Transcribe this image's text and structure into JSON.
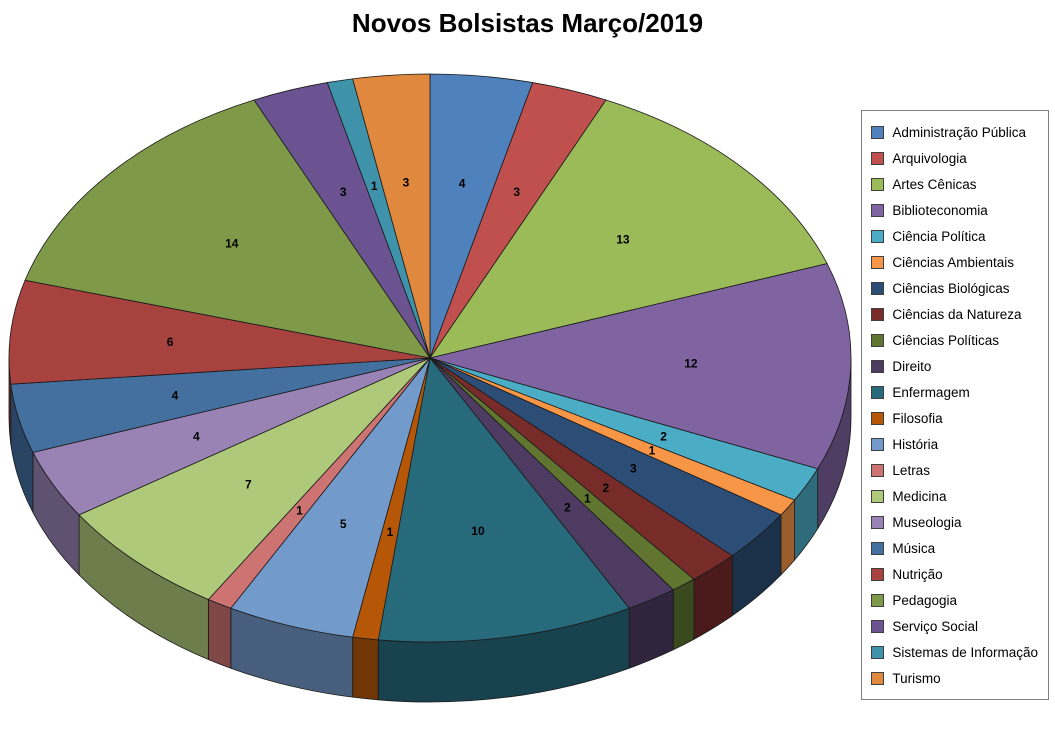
{
  "chart_data": {
    "type": "pie",
    "is_3d": true,
    "title": "Novos Bolsistas Março/2019",
    "legend_position": "right",
    "data_labels": "value",
    "background": "#FFFFFF",
    "categories": [
      "Administração Pública",
      "Arquivologia",
      "Artes Cênicas",
      "Biblioteconomia",
      "Ciência Política",
      "Ciências Ambientais",
      "Ciências Biológicas",
      "Ciências da Natureza",
      "Ciências Políticas",
      "Direito",
      "Enfermagem",
      "Filosofia",
      "História",
      "Letras",
      "Medicina",
      "Museologia",
      "Música",
      "Nutrição",
      "Pedagogia",
      "Serviço Social",
      "Sistemas de Informação",
      "Turismo"
    ],
    "values": [
      4,
      3,
      13,
      12,
      2,
      1,
      3,
      2,
      1,
      2,
      10,
      1,
      5,
      1,
      7,
      4,
      4,
      6,
      14,
      3,
      1,
      3
    ],
    "colors": [
      "#4F81BD",
      "#C0504D",
      "#9BBB59",
      "#8064A2",
      "#4BACC6",
      "#F79646",
      "#2C4D75",
      "#772C2A",
      "#5F7530",
      "#4D3B62",
      "#276A7C",
      "#B65708",
      "#729ACA",
      "#CD7371",
      "#AFC97A",
      "#9983B5",
      "#44709F",
      "#A8423F",
      "#7E9A48",
      "#6A5390",
      "#3E93AB",
      "#E0883E"
    ]
  }
}
